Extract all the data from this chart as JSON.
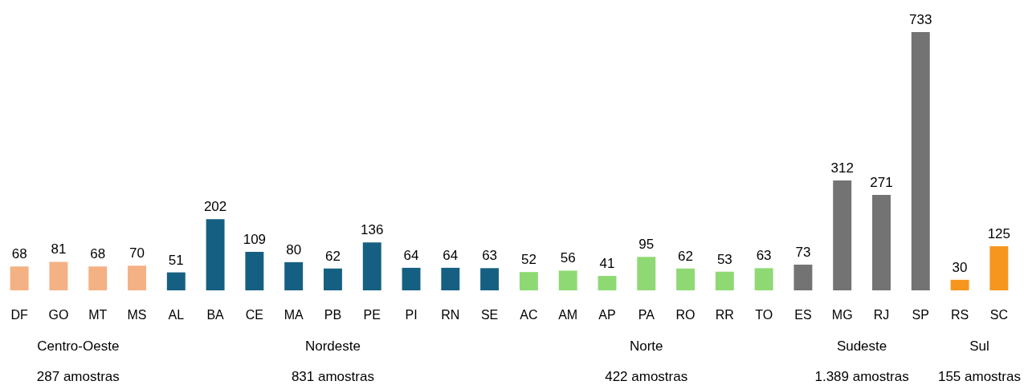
{
  "chart_data": {
    "type": "bar",
    "categories": [
      "DF",
      "GO",
      "MT",
      "MS",
      "AL",
      "BA",
      "CE",
      "MA",
      "PB",
      "PE",
      "PI",
      "RN",
      "SE",
      "AC",
      "AM",
      "AP",
      "PA",
      "RO",
      "RR",
      "TO",
      "ES",
      "MG",
      "RJ",
      "SP",
      "RS",
      "SC"
    ],
    "series": [
      {
        "color": "#f4b183",
        "values": [
          68,
          81,
          68,
          70,
          null,
          null,
          null,
          null,
          null,
          null,
          null,
          null,
          null,
          null,
          null,
          null,
          null,
          null,
          null,
          null,
          null,
          null,
          null,
          null,
          null,
          null
        ]
      },
      {
        "color": "#156082",
        "values": [
          null,
          null,
          null,
          null,
          51,
          202,
          109,
          80,
          62,
          136,
          64,
          64,
          63,
          null,
          null,
          null,
          null,
          null,
          null,
          null,
          null,
          null,
          null,
          null,
          null,
          null
        ]
      },
      {
        "color": "#8ed973",
        "values": [
          null,
          null,
          null,
          null,
          null,
          null,
          null,
          null,
          null,
          null,
          null,
          null,
          null,
          52,
          56,
          41,
          95,
          62,
          53,
          63,
          null,
          null,
          null,
          null,
          null,
          null
        ]
      },
      {
        "color": "#737373",
        "values": [
          null,
          null,
          null,
          null,
          null,
          null,
          null,
          null,
          null,
          null,
          null,
          null,
          null,
          null,
          null,
          null,
          null,
          null,
          null,
          null,
          73,
          312,
          271,
          733,
          null,
          null
        ]
      },
      {
        "color": "#f7961e",
        "values": [
          null,
          null,
          null,
          null,
          null,
          null,
          null,
          null,
          null,
          null,
          null,
          null,
          null,
          null,
          null,
          null,
          null,
          null,
          null,
          null,
          null,
          null,
          null,
          null,
          30,
          125
        ]
      }
    ],
    "data_labels": true,
    "annotations": [
      "Centro-Oeste",
      "287 amostras",
      "Nordeste",
      "831 amostras",
      "Norte",
      "422 amostras",
      "Sudeste",
      "1.389 amostras",
      "Sul",
      "155 amostras"
    ]
  }
}
